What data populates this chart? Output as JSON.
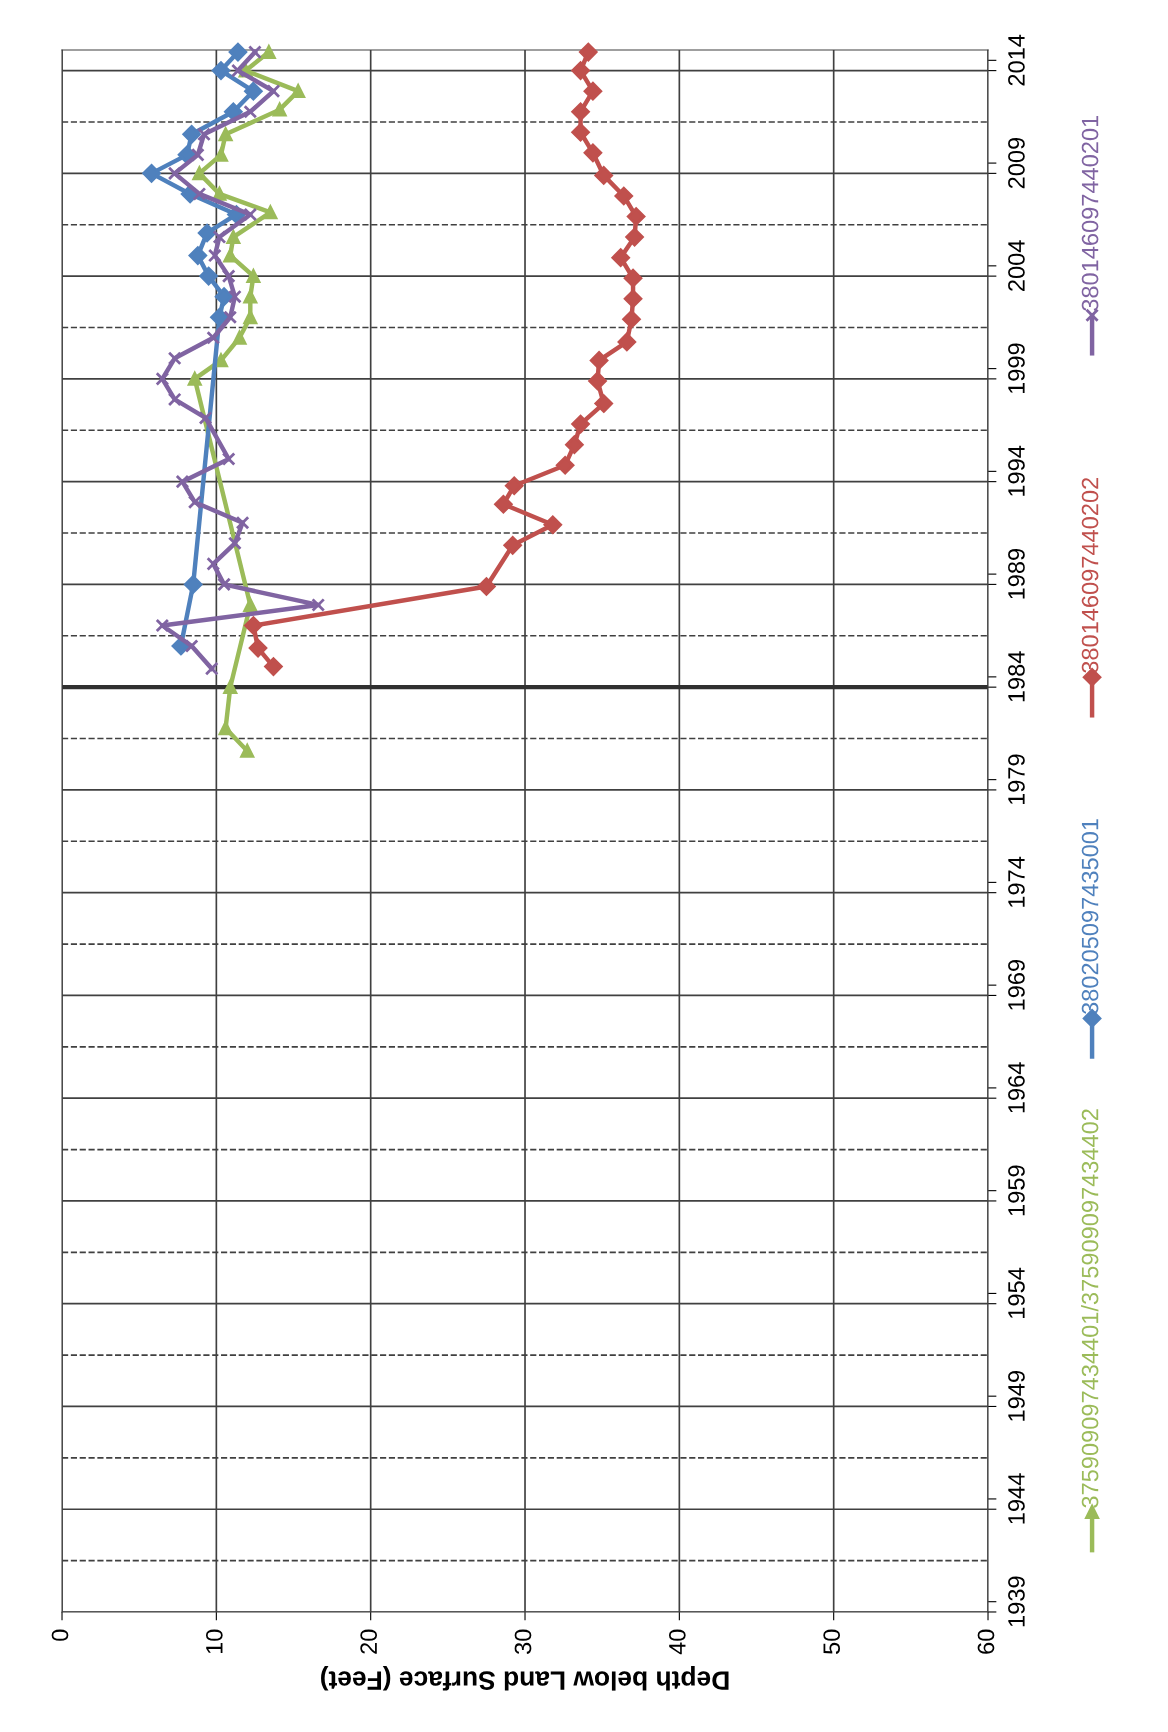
{
  "chart_data": {
    "type": "line",
    "orientation": "horizontal",
    "xlabel": "Depth below Land Surface (Feet)",
    "xlim": [
      0,
      60
    ],
    "xticks": [
      0,
      10,
      20,
      30,
      40,
      50,
      60
    ],
    "ylim": [
      1938.5,
      2014.5
    ],
    "yticks": [
      {
        "value": 1938.5,
        "label": null
      },
      {
        "value": 1939,
        "label": "1939"
      },
      {
        "value": 1943.5,
        "label": null
      },
      {
        "value": 1944,
        "label": "1944"
      },
      {
        "value": 1948.5,
        "label": null
      },
      {
        "value": 1949,
        "label": "1949"
      },
      {
        "value": 1953.5,
        "label": null
      },
      {
        "value": 1954,
        "label": "1954"
      },
      {
        "value": 1958.5,
        "label": null
      },
      {
        "value": 1959,
        "label": "1959"
      },
      {
        "value": 1963.5,
        "label": null
      },
      {
        "value": 1964,
        "label": "1964"
      },
      {
        "value": 1968.5,
        "label": null
      },
      {
        "value": 1969,
        "label": "1969"
      },
      {
        "value": 1973.5,
        "label": null
      },
      {
        "value": 1974,
        "label": "1974"
      },
      {
        "value": 1978.5,
        "label": null
      },
      {
        "value": 1979,
        "label": "1979"
      },
      {
        "value": 1983.5,
        "label": null
      },
      {
        "value": 1984,
        "label": "1984"
      },
      {
        "value": 1988.5,
        "label": null
      },
      {
        "value": 1989,
        "label": "1989"
      },
      {
        "value": 1993.5,
        "label": null
      },
      {
        "value": 1994,
        "label": "1994"
      },
      {
        "value": 1998.5,
        "label": null
      },
      {
        "value": 1999,
        "label": "1999"
      },
      {
        "value": 2003.5,
        "label": null
      },
      {
        "value": 2004,
        "label": "2004"
      },
      {
        "value": 2008.5,
        "label": null
      },
      {
        "value": 2009,
        "label": "2009"
      },
      {
        "value": 2013.5,
        "label": null
      },
      {
        "value": 2014,
        "label": "2014"
      }
    ],
    "grid": true,
    "legend": "right",
    "line_style": "solid",
    "ref_lines": [
      {
        "axis": "y",
        "value": 1941,
        "line_style": "dashed",
        "color": "#404040"
      },
      {
        "axis": "y",
        "value": 1946,
        "line_style": "dashed",
        "color": "#404040"
      },
      {
        "axis": "y",
        "value": 1951,
        "line_style": "dashed",
        "color": "#404040"
      },
      {
        "axis": "y",
        "value": 1956,
        "line_style": "dashed",
        "color": "#404040"
      },
      {
        "axis": "y",
        "value": 1961,
        "line_style": "dashed",
        "color": "#404040"
      },
      {
        "axis": "y",
        "value": 1966,
        "line_style": "dashed",
        "color": "#404040"
      },
      {
        "axis": "y",
        "value": 1971,
        "line_style": "dashed",
        "color": "#404040"
      },
      {
        "axis": "y",
        "value": 1976,
        "line_style": "dashed",
        "color": "#404040"
      },
      {
        "axis": "y",
        "value": 1981,
        "line_style": "dashed",
        "color": "#404040"
      },
      {
        "axis": "y",
        "value": 1986,
        "line_style": "dashed",
        "color": "#404040"
      },
      {
        "axis": "y",
        "value": 1991,
        "line_style": "dashed",
        "color": "#404040"
      },
      {
        "axis": "y",
        "value": 1996,
        "line_style": "dashed",
        "color": "#404040"
      },
      {
        "axis": "y",
        "value": 2001,
        "line_style": "dashed",
        "color": "#404040"
      },
      {
        "axis": "y",
        "value": 2006,
        "line_style": "dashed",
        "color": "#404040"
      },
      {
        "axis": "y",
        "value": 2011,
        "line_style": "dashed",
        "color": "#404040"
      },
      {
        "axis": "y",
        "value": 1983.5,
        "line_style": "solid",
        "color": "#303030"
      }
    ],
    "series": [
      {
        "name": "375909097434401/375909097434402",
        "color": "#9bbb59",
        "marker": "triangle",
        "x": [
          2014.4,
          2013.5,
          2012.5,
          2011.6,
          2010.4,
          2009.4,
          2008.5,
          2007.5,
          2006.6,
          2005.4,
          2004.5,
          2003.5,
          2002.5,
          2001.5,
          2000.5,
          1999.4,
          1998.5,
          1987.5,
          1983.5,
          1981.5,
          1980.4
        ],
        "values": [
          13.4,
          11.9,
          15.3,
          14.1,
          10.6,
          10.3,
          8.9,
          10.2,
          13.5,
          11.1,
          10.9,
          12.4,
          12.2,
          12.2,
          11.5,
          10.3,
          8.6,
          12.2,
          10.9,
          10.6,
          12.0
        ]
      },
      {
        "name": "380205097435001",
        "color": "#4f81bd",
        "marker": "diamond",
        "x": [
          2014.4,
          2013.5,
          2012.5,
          2011.5,
          2010.4,
          2009.4,
          2008.5,
          2007.5,
          2006.5,
          2005.6,
          2004.5,
          2003.5,
          2002.5,
          2001.5,
          1988.5,
          1985.5
        ],
        "values": [
          11.4,
          10.3,
          12.4,
          11.1,
          8.4,
          8.1,
          5.8,
          8.3,
          11.3,
          9.4,
          8.8,
          9.5,
          10.5,
          10.2,
          8.5,
          7.7
        ]
      },
      {
        "name": "380146097440202",
        "color": "#c0504d",
        "marker": "diamond",
        "x": [
          2014.4,
          2013.5,
          2012.5,
          2011.5,
          2010.5,
          2009.5,
          2008.4,
          2007.4,
          2006.4,
          2005.4,
          2004.4,
          2003.4,
          2002.4,
          2001.4,
          2000.3,
          1999.4,
          1998.4,
          1997.3,
          1996.3,
          1995.3,
          1994.3,
          1993.3,
          1992.4,
          1991.4,
          1990.4,
          1988.4,
          1986.5,
          1985.4,
          1984.5
        ],
        "values": [
          34.1,
          33.6,
          34.4,
          33.6,
          33.6,
          34.4,
          35.1,
          36.4,
          37.2,
          37.1,
          36.2,
          37.0,
          37.0,
          36.9,
          36.6,
          34.8,
          34.7,
          35.1,
          33.6,
          33.2,
          32.6,
          29.3,
          28.6,
          31.8,
          29.2,
          27.5,
          12.4,
          12.7,
          13.7
        ]
      },
      {
        "name": "380146097440201",
        "color": "#8064a2",
        "marker": "cross",
        "x": [
          2014.4,
          2013.5,
          2012.5,
          2011.5,
          2010.4,
          2009.4,
          2008.5,
          2007.5,
          2006.5,
          2005.4,
          2004.5,
          2003.5,
          2002.5,
          2001.5,
          2000.5,
          1999.5,
          1998.5,
          1997.5,
          1996.6,
          1994.6,
          1993.5,
          1992.5,
          1991.5,
          1990.5,
          1989.5,
          1988.5,
          1987.5,
          1986.5,
          1985.5,
          1984.4
        ],
        "values": [
          12.5,
          11.4,
          13.7,
          12.2,
          9.2,
          8.8,
          7.3,
          8.9,
          12.2,
          10.2,
          9.9,
          10.8,
          11.2,
          10.9,
          9.8,
          7.3,
          6.5,
          7.3,
          9.3,
          10.8,
          7.8,
          8.6,
          11.7,
          11.2,
          9.8,
          10.5,
          16.6,
          6.5,
          8.4,
          9.7
        ]
      }
    ]
  }
}
